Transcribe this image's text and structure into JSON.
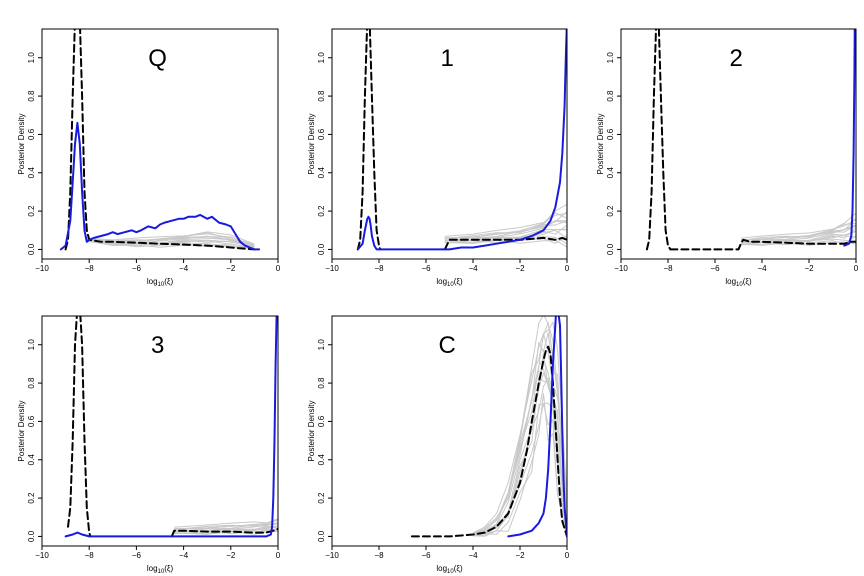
{
  "figure": {
    "colors": {
      "blue": "#1a1adf",
      "black": "#000000",
      "gray": "#c9c9c9"
    }
  },
  "chart_data": [
    {
      "type": "line",
      "label": "Q",
      "xlabel": "log",
      "xlabel_sub": "10",
      "xlabel_arg": "(ξ)",
      "ylabel": "Posterior Density",
      "xlim": [
        -10,
        0
      ],
      "ylim": [
        -0.05,
        1.15
      ],
      "xticks": [
        -10,
        -8,
        -6,
        -4,
        -2,
        0
      ],
      "xtick_labels": [
        "−10",
        "−8",
        "−6",
        "−4",
        "−2",
        "0"
      ],
      "yticks": [
        0,
        0.2,
        0.4,
        0.6,
        0.8,
        1.0
      ],
      "ytick_labels": [
        "0.0",
        "0.2",
        "0.4",
        "0.6",
        "0.8",
        "1.0"
      ],
      "series": [
        {
          "style": "gray-band",
          "x": [
            -8.1,
            -7,
            -6,
            -5,
            -4,
            -3,
            -2,
            -1
          ],
          "low": [
            0.04,
            0.02,
            0.01,
            0.01,
            0.01,
            0.01,
            0.01,
            0.0
          ],
          "high": [
            0.06,
            0.05,
            0.06,
            0.07,
            0.08,
            0.1,
            0.08,
            0.03
          ]
        },
        {
          "style": "black-dashed",
          "x": [
            -9.0,
            -8.9,
            -8.8,
            -8.7,
            -8.6,
            -8.5,
            -8.45,
            -8.4,
            -8.3,
            -8.2,
            -8.1,
            -8.0,
            -7.5,
            -7.0,
            -6.0,
            -5.0,
            -4.0,
            -3.0,
            -2.0,
            -1.5,
            -1.0
          ],
          "y": [
            0.0,
            0.05,
            0.3,
            0.8,
            1.2,
            1.2,
            1.2,
            1.2,
            0.8,
            0.3,
            0.1,
            0.05,
            0.04,
            0.04,
            0.035,
            0.03,
            0.025,
            0.02,
            0.01,
            0.005,
            0.0
          ]
        },
        {
          "style": "blue-solid",
          "x": [
            -9.2,
            -9.0,
            -8.8,
            -8.7,
            -8.6,
            -8.5,
            -8.4,
            -8.3,
            -8.2,
            -8.1,
            -8.0,
            -7.8,
            -7.5,
            -7.2,
            -7.0,
            -6.8,
            -6.5,
            -6.2,
            -6.0,
            -5.8,
            -5.5,
            -5.2,
            -5.0,
            -4.8,
            -4.5,
            -4.2,
            -4.0,
            -3.8,
            -3.5,
            -3.3,
            -3.0,
            -2.8,
            -2.5,
            -2.2,
            -2.0,
            -1.8,
            -1.6,
            -1.4,
            -1.2,
            -1.0,
            -0.8
          ],
          "y": [
            0.0,
            0.02,
            0.15,
            0.35,
            0.55,
            0.66,
            0.55,
            0.3,
            0.1,
            0.04,
            0.05,
            0.06,
            0.07,
            0.08,
            0.09,
            0.08,
            0.09,
            0.1,
            0.09,
            0.1,
            0.12,
            0.11,
            0.13,
            0.14,
            0.15,
            0.16,
            0.16,
            0.17,
            0.17,
            0.18,
            0.16,
            0.17,
            0.14,
            0.13,
            0.12,
            0.08,
            0.04,
            0.02,
            0.01,
            0.0,
            0.0
          ]
        }
      ]
    },
    {
      "type": "line",
      "label": "1",
      "xlabel": "log",
      "xlabel_sub": "10",
      "xlabel_arg": "(ξ)",
      "ylabel": "Posterior Density",
      "xlim": [
        -10,
        0
      ],
      "ylim": [
        -0.05,
        1.15
      ],
      "xticks": [
        -10,
        -8,
        -6,
        -4,
        -2,
        0
      ],
      "xtick_labels": [
        "−10",
        "−8",
        "−6",
        "−4",
        "−2",
        "0"
      ],
      "yticks": [
        0,
        0.2,
        0.4,
        0.6,
        0.8,
        1.0
      ],
      "ytick_labels": [
        "0.0",
        "0.2",
        "0.4",
        "0.6",
        "0.8",
        "1.0"
      ],
      "series": [
        {
          "style": "gray-band",
          "x": [
            -5.2,
            -4,
            -3,
            -2,
            -1,
            -0.5,
            0
          ],
          "low": [
            0.03,
            0.03,
            0.03,
            0.03,
            0.02,
            0.02,
            0.0
          ],
          "high": [
            0.07,
            0.08,
            0.1,
            0.12,
            0.16,
            0.22,
            0.25
          ]
        },
        {
          "style": "black-dashed",
          "x": [
            -8.9,
            -8.8,
            -8.7,
            -8.6,
            -8.5,
            -8.45,
            -8.4,
            -8.3,
            -8.2,
            -8.1,
            -8.0,
            -7.95
          ],
          "y": [
            0.0,
            0.05,
            0.3,
            0.8,
            1.2,
            1.2,
            1.2,
            0.8,
            0.4,
            0.1,
            0.02,
            0.0
          ]
        },
        {
          "style": "black-dashed",
          "x": [
            -5.2,
            -5.0,
            -4.8,
            -4.0,
            -3.0,
            -2.0,
            -1.0,
            -0.5,
            -0.2,
            0.0
          ],
          "y": [
            0.0,
            0.05,
            0.05,
            0.05,
            0.05,
            0.05,
            0.06,
            0.05,
            0.06,
            0.05
          ]
        },
        {
          "style": "blue-solid",
          "x": [
            -8.9,
            -8.7,
            -8.6,
            -8.5,
            -8.45,
            -8.4,
            -8.35,
            -8.3,
            -8.2,
            -8.1,
            -8.0,
            -7.5,
            -7.0,
            -6.0,
            -5.0,
            -4.5,
            -4.0,
            -3.5,
            -3.0,
            -2.5,
            -2.0,
            -1.5,
            -1.0,
            -0.7,
            -0.5,
            -0.3,
            -0.2,
            -0.1,
            -0.05,
            0.0
          ],
          "y": [
            0.0,
            0.03,
            0.1,
            0.16,
            0.17,
            0.16,
            0.12,
            0.07,
            0.02,
            0.0,
            0.0,
            0.0,
            0.0,
            0.0,
            0.0,
            0.01,
            0.01,
            0.02,
            0.03,
            0.04,
            0.05,
            0.07,
            0.1,
            0.15,
            0.22,
            0.35,
            0.5,
            0.75,
            1.0,
            1.2
          ]
        }
      ]
    },
    {
      "type": "line",
      "label": "2",
      "xlabel": "log",
      "xlabel_sub": "10",
      "xlabel_arg": "(ξ)",
      "ylabel": "Posterior Density",
      "xlim": [
        -10,
        0
      ],
      "ylim": [
        -0.05,
        1.15
      ],
      "xticks": [
        -10,
        -8,
        -6,
        -4,
        -2,
        0
      ],
      "xtick_labels": [
        "−10",
        "−8",
        "−6",
        "−4",
        "−2",
        "0"
      ],
      "yticks": [
        0,
        0.2,
        0.4,
        0.6,
        0.8,
        1.0
      ],
      "ytick_labels": [
        "0.0",
        "0.2",
        "0.4",
        "0.6",
        "0.8",
        "1.0"
      ],
      "series": [
        {
          "style": "gray-band",
          "x": [
            -4.9,
            -4,
            -3,
            -2,
            -1,
            -0.5,
            0
          ],
          "low": [
            0.02,
            0.02,
            0.02,
            0.02,
            0.02,
            0.02,
            0.02
          ],
          "high": [
            0.06,
            0.07,
            0.08,
            0.09,
            0.12,
            0.15,
            0.2
          ]
        },
        {
          "style": "black-dashed",
          "x": [
            -8.9,
            -8.8,
            -8.7,
            -8.6,
            -8.5,
            -8.45,
            -8.4,
            -8.3,
            -8.2,
            -8.1,
            -8.0,
            -7.9
          ],
          "y": [
            0.0,
            0.05,
            0.3,
            0.8,
            1.2,
            1.2,
            1.2,
            0.8,
            0.4,
            0.1,
            0.02,
            0.0
          ]
        },
        {
          "style": "black-dashed",
          "x": [
            -7.9,
            -5.0,
            -4.9,
            -4.8,
            -4.5,
            -4.0,
            -3.0,
            -2.0,
            -1.0,
            -0.5,
            -0.2,
            0.0
          ],
          "y": [
            0.0,
            0.0,
            0.03,
            0.05,
            0.04,
            0.04,
            0.035,
            0.03,
            0.03,
            0.03,
            0.04,
            0.04
          ]
        },
        {
          "style": "blue-solid",
          "x": [
            -0.5,
            -0.3,
            -0.2,
            -0.15,
            -0.1,
            -0.07,
            -0.05
          ],
          "y": [
            0.02,
            0.03,
            0.07,
            0.2,
            0.5,
            0.9,
            1.2
          ]
        }
      ]
    },
    {
      "type": "line",
      "label": "3",
      "xlabel": "log",
      "xlabel_sub": "10",
      "xlabel_arg": "(ξ)",
      "ylabel": "Posterior Density",
      "xlim": [
        -10,
        0
      ],
      "ylim": [
        -0.05,
        1.15
      ],
      "xticks": [
        -10,
        -8,
        -6,
        -4,
        -2,
        0
      ],
      "xtick_labels": [
        "−10",
        "−8",
        "−6",
        "−4",
        "−2",
        "0"
      ],
      "yticks": [
        0,
        0.2,
        0.4,
        0.6,
        0.8,
        1.0
      ],
      "ytick_labels": [
        "0.0",
        "0.2",
        "0.4",
        "0.6",
        "0.8",
        "1.0"
      ],
      "series": [
        {
          "style": "gray-band",
          "x": [
            -4.4,
            -3,
            -2,
            -1,
            -0.5,
            0
          ],
          "low": [
            0.01,
            0.01,
            0.01,
            0.01,
            0.01,
            0.02
          ],
          "high": [
            0.05,
            0.06,
            0.07,
            0.08,
            0.08,
            0.1
          ]
        },
        {
          "style": "black-dashed",
          "x": [
            -8.9,
            -8.8,
            -8.7,
            -8.6,
            -8.5,
            -8.45,
            -8.4,
            -8.3,
            -8.2,
            -8.1,
            -8.0,
            -7.95
          ],
          "y": [
            0.05,
            0.15,
            0.5,
            1.0,
            1.2,
            1.2,
            1.2,
            1.0,
            0.5,
            0.15,
            0.02,
            0.0
          ]
        },
        {
          "style": "black-dashed",
          "x": [
            -4.5,
            -4.4,
            -4.3,
            -4.0,
            -3.0,
            -2.0,
            -1.0,
            -0.5,
            -0.2,
            0.0
          ],
          "y": [
            0.0,
            0.03,
            0.03,
            0.03,
            0.025,
            0.025,
            0.02,
            0.02,
            0.03,
            0.04
          ]
        },
        {
          "style": "blue-solid",
          "x": [
            -9.0,
            -8.7,
            -8.5,
            -8.3,
            -8.0,
            -7.0,
            -6.0,
            -5.0,
            -4.0,
            -3.0,
            -2.0,
            -1.0,
            -0.5,
            -0.3,
            -0.25,
            -0.2,
            -0.15,
            -0.1,
            -0.05
          ],
          "y": [
            0.0,
            0.01,
            0.02,
            0.01,
            0.0,
            0.0,
            0.0,
            0.0,
            0.0,
            0.0,
            0.0,
            0.0,
            0.0,
            0.01,
            0.05,
            0.2,
            0.5,
            0.9,
            1.2
          ]
        }
      ]
    },
    {
      "type": "line",
      "label": "C",
      "xlabel": "log",
      "xlabel_sub": "10",
      "xlabel_arg": "(ξ)",
      "ylabel": "Posterior Density",
      "xlim": [
        -10,
        0
      ],
      "ylim": [
        -0.05,
        1.15
      ],
      "xticks": [
        -10,
        -8,
        -6,
        -4,
        -2,
        0
      ],
      "xtick_labels": [
        "−10",
        "−8",
        "−6",
        "−4",
        "−2",
        "0"
      ],
      "yticks": [
        0,
        0.2,
        0.4,
        0.6,
        0.8,
        1.0
      ],
      "ytick_labels": [
        "0.0",
        "0.2",
        "0.4",
        "0.6",
        "0.8",
        "1.0"
      ],
      "series": [
        {
          "style": "gray-band",
          "x": [
            -4.0,
            -3.5,
            -3.0,
            -2.5,
            -2.0,
            -1.5,
            -1.2,
            -1.0,
            -0.8,
            -0.6,
            -0.4,
            -0.2,
            0.0
          ],
          "low": [
            0.0,
            0.0,
            0.0,
            0.02,
            0.1,
            0.3,
            0.5,
            0.6,
            0.5,
            0.35,
            0.15,
            0.05,
            0.0
          ],
          "high": [
            0.02,
            0.05,
            0.12,
            0.3,
            0.6,
            0.95,
            1.15,
            1.2,
            1.2,
            1.2,
            1.0,
            0.6,
            0.2
          ]
        },
        {
          "style": "black-dashed",
          "x": [
            -6.6,
            -5.0,
            -4.0,
            -3.5,
            -3.0,
            -2.5,
            -2.0,
            -1.7,
            -1.5,
            -1.2,
            -1.0,
            -0.9,
            -0.8,
            -0.7,
            -0.6,
            -0.5,
            -0.4,
            -0.3,
            -0.2,
            0.0
          ],
          "y": [
            0.0,
            0.0,
            0.01,
            0.02,
            0.05,
            0.12,
            0.28,
            0.45,
            0.6,
            0.8,
            0.92,
            0.97,
            0.99,
            0.95,
            0.8,
            0.6,
            0.4,
            0.2,
            0.08,
            0.0
          ]
        },
        {
          "style": "blue-solid",
          "x": [
            -2.5,
            -2.0,
            -1.5,
            -1.2,
            -1.0,
            -0.9,
            -0.8,
            -0.7,
            -0.6,
            -0.5,
            -0.45,
            -0.4,
            -0.3,
            -0.25,
            -0.2,
            -0.15,
            -0.1,
            0.0
          ],
          "y": [
            0.0,
            0.01,
            0.03,
            0.07,
            0.12,
            0.2,
            0.35,
            0.6,
            0.9,
            1.1,
            1.2,
            1.2,
            1.1,
            0.85,
            0.55,
            0.3,
            0.15,
            0.0
          ]
        }
      ]
    }
  ]
}
